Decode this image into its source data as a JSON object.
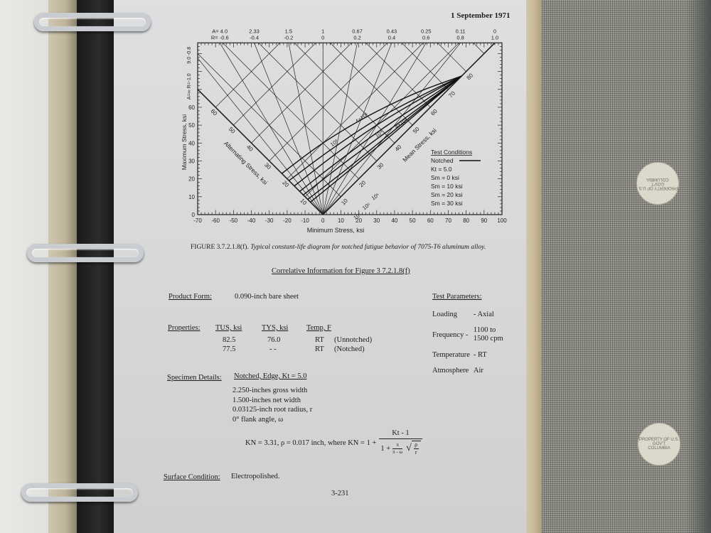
{
  "header": {
    "date": "1 September 1971",
    "page_number": "3-231"
  },
  "figure": {
    "label": "FIGURE 3.7.2.1.8(f).",
    "caption": "Typical constant-life diagram for notched fatigue behavior of 7075-T6 aluminum alloy."
  },
  "chart_data": {
    "type": "line",
    "title": "",
    "xlabel": "Minimum Stress, ksi",
    "ylabel": "Maximum Stress, ksi",
    "alternating_axis_label": "Alternating Stress, ksi",
    "mean_axis_label": "Mean Stress, ksi",
    "xlim": [
      -70,
      100
    ],
    "ylim": [
      0,
      96
    ],
    "x_ticks": [
      "-70",
      "-60",
      "-50",
      "-40",
      "-30",
      "-20",
      "-10",
      "0",
      "10",
      "20",
      "30",
      "40",
      "50",
      "60",
      "70",
      "80",
      "90",
      "100"
    ],
    "y_ticks": [
      "0",
      "10",
      "20",
      "30",
      "40",
      "50",
      "60"
    ],
    "alternating_ticks": [
      "10",
      "20",
      "30",
      "40",
      "50",
      "60"
    ],
    "mean_ticks": [
      "10",
      "20",
      "30",
      "40",
      "50",
      "60",
      "70",
      "80"
    ],
    "stress_ratio_lines": [
      {
        "A": "∞",
        "R": "-1.0",
        "r": -1.0
      },
      {
        "A": "9.0",
        "R": "-0.8",
        "r": -0.8
      },
      {
        "A": "4.0",
        "R": "-0.6",
        "r": -0.6
      },
      {
        "A": "2.33",
        "R": "-0.4",
        "r": -0.4
      },
      {
        "A": "1.5",
        "R": "-0.2",
        "r": -0.2
      },
      {
        "A": "1",
        "R": "0",
        "r": 0
      },
      {
        "A": "0.67",
        "R": "0.2",
        "r": 0.2
      },
      {
        "A": "0.43",
        "R": "0.4",
        "r": 0.4
      },
      {
        "A": "0.25",
        "R": "0.6",
        "r": 0.6
      },
      {
        "A": "0.11",
        "R": "0.8",
        "r": 0.8
      },
      {
        "A": "0",
        "R": "1.0",
        "r": 1.0
      }
    ],
    "series_note": "points are [mean stress, alternating stress] in ksi",
    "series": [
      {
        "name": "10³",
        "points": [
          [
            0,
            23
          ],
          [
            20,
            20
          ],
          [
            40,
            15
          ],
          [
            60,
            8
          ],
          [
            77.5,
            0
          ]
        ]
      },
      {
        "name": "4×10³",
        "points": [
          [
            0,
            19
          ],
          [
            20,
            16
          ],
          [
            40,
            12
          ],
          [
            60,
            6
          ],
          [
            77.5,
            0
          ]
        ]
      },
      {
        "name": "10⁴",
        "points": [
          [
            0,
            16
          ],
          [
            20,
            13.5
          ],
          [
            40,
            10
          ],
          [
            60,
            5
          ],
          [
            77.5,
            0
          ]
        ]
      },
      {
        "name": "4×10⁴",
        "points": [
          [
            0,
            13
          ],
          [
            20,
            10.5
          ],
          [
            40,
            7.5
          ],
          [
            60,
            3.5
          ],
          [
            77.5,
            0
          ]
        ]
      },
      {
        "name": "10⁵",
        "points": [
          [
            0,
            11
          ],
          [
            20,
            8.5
          ],
          [
            40,
            5.5
          ],
          [
            60,
            2.5
          ],
          [
            77.5,
            0
          ]
        ]
      },
      {
        "name": "10⁶",
        "points": [
          [
            0,
            8.5
          ],
          [
            20,
            6
          ],
          [
            40,
            4
          ],
          [
            60,
            2
          ],
          [
            77.5,
            0
          ]
        ]
      },
      {
        "name": "10⁷",
        "points": [
          [
            0,
            7
          ],
          [
            20,
            5
          ],
          [
            40,
            3.2
          ],
          [
            60,
            1.6
          ],
          [
            77.5,
            0
          ]
        ]
      }
    ],
    "grid": true,
    "legend": {
      "title": "Test Conditions",
      "lines": [
        "Notched",
        "Kt = 5.0",
        "Sm = 0 ksi",
        "Sm = 10 ksi",
        "Sm = 20 ksi",
        "Sm = 30 ksi"
      ],
      "placement": "right"
    }
  },
  "correlative": {
    "title": "Correlative Information for Figure 3 7.2.1.8(f)",
    "product_form_label": "Product Form:",
    "product_form_value": "0.090-inch bare sheet",
    "properties_label": "Properties:",
    "properties_headers": [
      "TUS, ksi",
      "TYS, ksi",
      "Temp, F"
    ],
    "properties_rows": [
      [
        "82.5",
        "76.0",
        "RT",
        "(Unnotched)"
      ],
      [
        "77.5",
        "- -",
        "RT",
        "(Notched)"
      ]
    ],
    "specimen_label": "Specimen Details:",
    "specimen_header": "Notched, Edge, Kt = 5.0",
    "specimen_lines": [
      "2.250-inches gross width",
      "1.500-inches net width",
      "0.03125-inch root radius, r",
      "0° flank angle, ω"
    ],
    "formula_left": "KN = 3.31, ρ = 0.017 inch, where KN = 1 +",
    "formula_numerator": "Kt - 1",
    "formula_denominator_a": "1 +",
    "formula_pi_frac_top": "π",
    "formula_pi_frac_bottom": "π - ω",
    "formula_sqrt_top": "ρ",
    "formula_sqrt_bottom": "r",
    "surface_label": "Surface Condition:",
    "surface_value": "Electropolished.",
    "test_params_label": "Test Parameters:",
    "test_params": [
      {
        "name": "Loading",
        "value": "- Axial"
      },
      {
        "name": "Frequency -",
        "value": "1100 to",
        "value2": "1500 cpm"
      },
      {
        "name": "Temperature",
        "value": "- RT"
      },
      {
        "name": "Atmosphere",
        "value": "Air"
      }
    ]
  },
  "cover": {
    "stamp_text": [
      "PROPERTY OF U.S. GOV'T",
      "COLUMBIA"
    ]
  }
}
